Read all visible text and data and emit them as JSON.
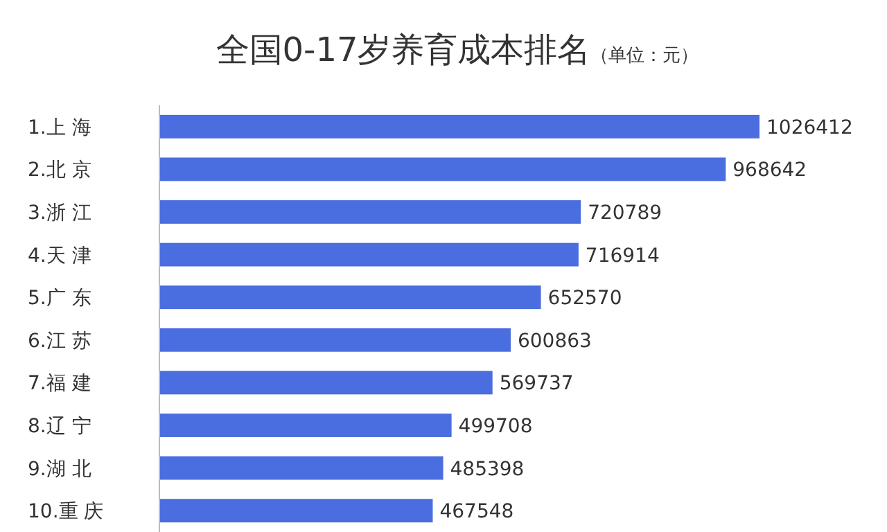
{
  "chart_data": {
    "type": "bar",
    "orientation": "horizontal",
    "title": "全国0-17岁养育成本排名",
    "subtitle": "（单位：元）",
    "categories": [
      "1.上 海",
      "2.北 京",
      "3.浙 江",
      "4.天 津",
      "5.广 东",
      "6.江 苏",
      "7.福 建",
      "8.辽 宁",
      "9.湖 北",
      "10.重 庆"
    ],
    "values": [
      1026412,
      968642,
      720789,
      716914,
      652570,
      600863,
      569737,
      499708,
      485398,
      467548
    ],
    "color": "#4a6de0",
    "data_labels": true
  }
}
